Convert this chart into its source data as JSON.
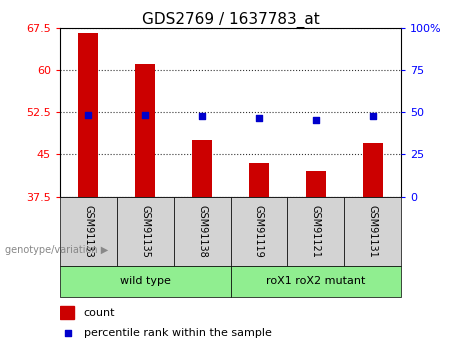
{
  "title": "GDS2769 / 1637783_at",
  "samples": [
    "GSM91133",
    "GSM91135",
    "GSM91138",
    "GSM91119",
    "GSM91121",
    "GSM91131"
  ],
  "group_labels": [
    "wild type",
    "roX1 roX2 mutant"
  ],
  "count_values": [
    66.5,
    61.0,
    47.5,
    43.5,
    42.0,
    47.0
  ],
  "percentile_values": [
    48.5,
    48.5,
    47.5,
    46.5,
    45.5,
    48.0
  ],
  "baseline": 37.5,
  "ylim_left": [
    37.5,
    67.5
  ],
  "ylim_right": [
    0,
    100
  ],
  "yticks_left": [
    37.5,
    45.0,
    52.5,
    60.0,
    67.5
  ],
  "yticks_right": [
    0,
    25,
    50,
    75,
    100
  ],
  "bar_color": "#cc0000",
  "dot_color": "#0000cc",
  "bar_width": 0.35,
  "legend_count_label": "count",
  "legend_percentile_label": "percentile rank within the sample",
  "xlabel_annotation": "genotype/variation",
  "group_box_color": "#90ee90",
  "sample_box_color": "#d3d3d3",
  "title_fontsize": 11,
  "tick_fontsize": 8,
  "sample_label_fontsize": 7,
  "group_label_fontsize": 8,
  "legend_fontsize": 8
}
